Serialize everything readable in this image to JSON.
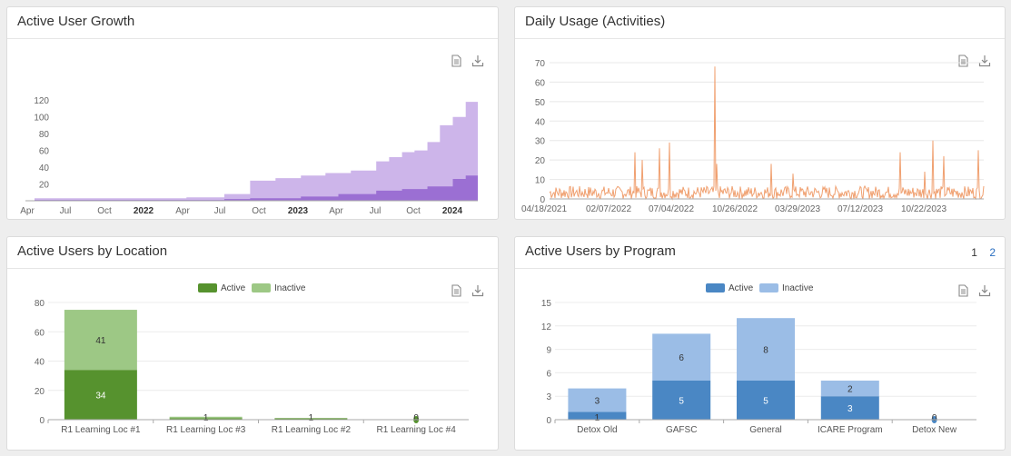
{
  "panels": {
    "growth": {
      "title": "Active User Growth"
    },
    "daily": {
      "title": "Daily Usage (Activities)"
    },
    "location": {
      "title": "Active Users by Location"
    },
    "program": {
      "title": "Active Users by Program",
      "pages": [
        "1",
        "2"
      ]
    }
  },
  "icons": {
    "document": "document-icon",
    "download": "download-icon"
  },
  "colors": {
    "growth_total": "#cdb5ea",
    "growth_active": "#9b6fd3",
    "daily_line": "#f0a070",
    "loc_active": "#56922e",
    "loc_inactive": "#9dc885",
    "prog_active": "#4a87c4",
    "prog_inactive": "#9bbde6"
  },
  "chart_data": [
    {
      "type": "area",
      "title": "Active User Growth",
      "x_ticks": [
        "Apr",
        "Jul",
        "Oct",
        "2022",
        "Apr",
        "Jul",
        "Oct",
        "2023",
        "Apr",
        "Jul",
        "Oct",
        "2024"
      ],
      "y_ticks": [
        "0",
        "20",
        "40",
        "60",
        "80",
        "100",
        "120"
      ],
      "ylim": [
        0,
        130
      ],
      "series": [
        {
          "x": [
            "2021-04",
            "2022-04",
            "2022-07",
            "2022-09",
            "2022-11",
            "2023-01",
            "2023-03",
            "2023-05",
            "2023-07",
            "2023-08",
            "2023-09",
            "2023-10",
            "2023-11",
            "2023-12",
            "2024-01",
            "2024-02"
          ],
          "values": [
            3,
            4,
            8,
            24,
            27,
            30,
            33,
            36,
            47,
            52,
            58,
            60,
            70,
            90,
            100,
            118
          ]
        },
        {
          "x": [
            "2021-04",
            "2022-07",
            "2022-09",
            "2023-01",
            "2023-04",
            "2023-07",
            "2023-09",
            "2023-11",
            "2024-01",
            "2024-02"
          ],
          "values": [
            1,
            2,
            3,
            5,
            8,
            12,
            14,
            17,
            26,
            30
          ]
        }
      ]
    },
    {
      "type": "line",
      "title": "Daily Usage (Activities)",
      "x_ticks": [
        "04/18/2021",
        "02/07/2022",
        "07/04/2022",
        "10/26/2022",
        "03/29/2023",
        "07/12/2023",
        "10/22/2023"
      ],
      "y_ticks": [
        "0",
        "10",
        "20",
        "30",
        "40",
        "50",
        "60",
        "70"
      ],
      "ylim": [
        0,
        70
      ],
      "peaks": [
        {
          "x": "2021-11-05",
          "y": 24
        },
        {
          "x": "2021-11-22",
          "y": 20
        },
        {
          "x": "2022-01-02",
          "y": 26
        },
        {
          "x": "2022-01-25",
          "y": 29
        },
        {
          "x": "2022-05-12",
          "y": 68
        },
        {
          "x": "2022-05-15",
          "y": 18
        },
        {
          "x": "2022-09-20",
          "y": 18
        },
        {
          "x": "2022-11-10",
          "y": 13
        },
        {
          "x": "2023-07-20",
          "y": 24
        },
        {
          "x": "2023-09-15",
          "y": 14
        },
        {
          "x": "2023-10-05",
          "y": 30
        },
        {
          "x": "2023-10-30",
          "y": 22
        },
        {
          "x": "2024-01-20",
          "y": 25
        }
      ],
      "baseline": 3
    },
    {
      "type": "bar",
      "title": "Active Users by Location",
      "categories": [
        "R1 Learning Loc #1",
        "R1 Learning Loc #3",
        "R1 Learning Loc #2",
        "R1 Learning Loc #4"
      ],
      "series": [
        {
          "name": "Active",
          "values": [
            34,
            1,
            1,
            0
          ],
          "labels": [
            "34",
            "1",
            "1",
            "0"
          ]
        },
        {
          "name": "Inactive",
          "values": [
            41,
            1,
            0,
            0
          ],
          "labels": [
            "41",
            "",
            "",
            ""
          ]
        }
      ],
      "y_ticks": [
        "0",
        "20",
        "40",
        "60",
        "80"
      ],
      "ylim": [
        0,
        80
      ],
      "legend": "top-center"
    },
    {
      "type": "bar",
      "title": "Active Users by Program",
      "categories": [
        "Detox Old",
        "GAFSC",
        "General",
        "ICARE Program",
        "Detox New"
      ],
      "series": [
        {
          "name": "Active",
          "values": [
            1,
            5,
            5,
            3,
            0
          ],
          "labels": [
            "1",
            "5",
            "5",
            "3",
            "0"
          ]
        },
        {
          "name": "Inactive",
          "values": [
            3,
            6,
            8,
            2,
            0
          ],
          "labels": [
            "3",
            "6",
            "8",
            "2",
            ""
          ]
        }
      ],
      "y_ticks": [
        "0",
        "3",
        "6",
        "9",
        "12",
        "15"
      ],
      "ylim": [
        0,
        15
      ],
      "legend": "top-center"
    }
  ]
}
